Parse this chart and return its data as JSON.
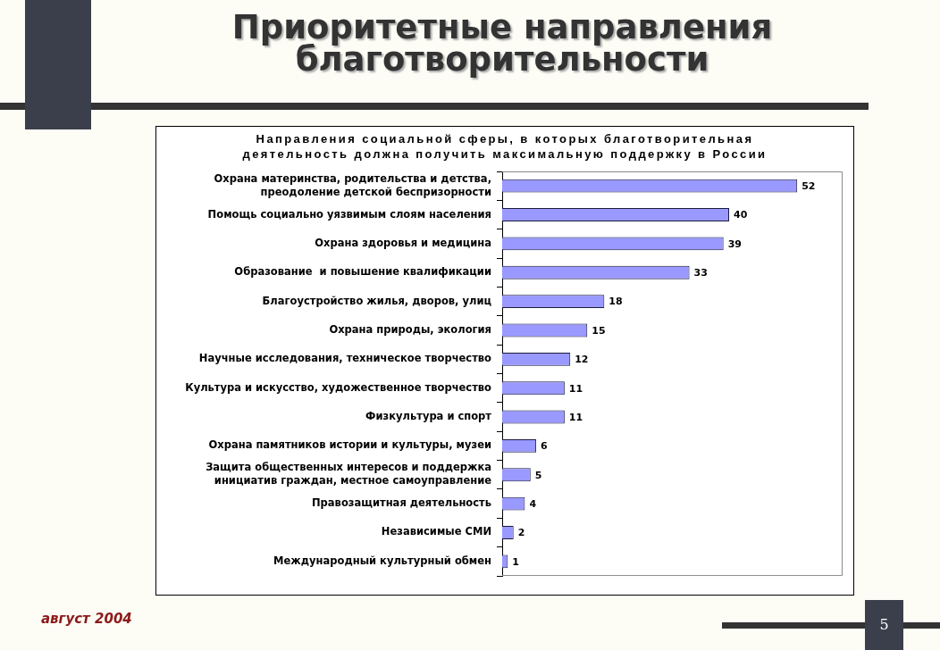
{
  "chart_data": {
    "type": "bar",
    "title": "Приоритетные направления благотворительности",
    "subtitle": "Направления социальной сферы, в которых благотворительная деятельность должна получить максимальную поддержку в России",
    "orientation": "horizontal",
    "categories": [
      "Охрана материнства, родительства и детства, преодоление детской беспризорности",
      "Помощь социально уязвимым слоям населения",
      "Охрана здоровья и медицина",
      "Образование  и повышение квалификации",
      "Благоустройство жилья, дворов, улиц",
      "Охрана природы, экология",
      "Научные исследования, техническое творчество",
      "Культура и искусство, художественное творчество",
      "Физкультура и спорт",
      "Охрана памятников истории и культуры, музеи",
      "Защита общественных интересов и поддержка инициатив граждан, местное самоуправление",
      "Правозащитная деятельность",
      "Независимые СМИ",
      "Международный культурный обмен"
    ],
    "values": [
      52,
      40,
      39,
      33,
      18,
      15,
      12,
      11,
      11,
      6,
      5,
      4,
      2,
      1
    ],
    "color": "#9999ff",
    "data_labels": true,
    "tick_labels": "y",
    "legend": false,
    "grid": false,
    "annotations": [
      "август 2004",
      "5"
    ]
  }
}
